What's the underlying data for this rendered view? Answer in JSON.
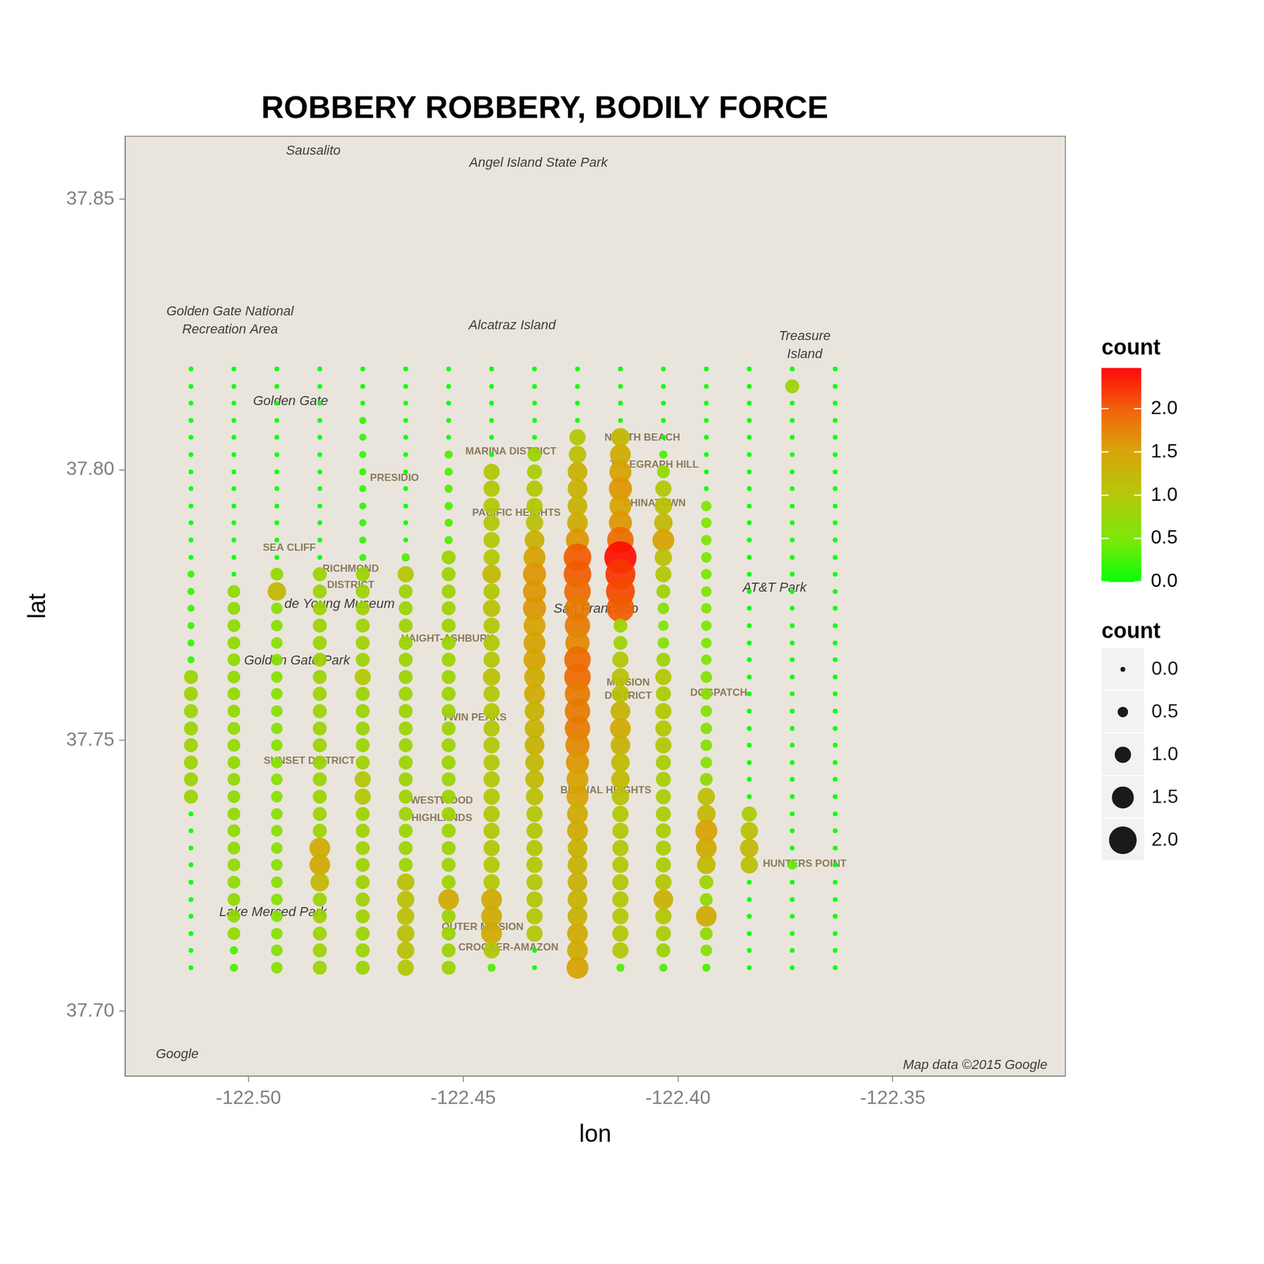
{
  "chart_data": {
    "type": "bubble",
    "title": "ROBBERY ROBBERY, BODILY FORCE",
    "x_label": "lon",
    "y_label": "lat",
    "xlim": [
      -122.5287,
      -122.3098
    ],
    "ylim": [
      37.688,
      37.8616
    ],
    "xticks": [
      {
        "value": -122.5,
        "label": "-122.50"
      },
      {
        "value": -122.45,
        "label": "-122.45"
      },
      {
        "value": -122.4,
        "label": "-122.40"
      },
      {
        "value": -122.35,
        "label": "-122.35"
      }
    ],
    "yticks": [
      {
        "value": 37.7,
        "label": "37.70"
      },
      37.75,
      {
        "value": 37.8,
        "label": "37.80"
      },
      37.85
    ],
    "grid": false,
    "legend": "right",
    "x": [
      -122.5134,
      -122.5034,
      -122.4934,
      -122.4834,
      -122.4734,
      -122.4634,
      -122.4534,
      -122.4434,
      -122.4334,
      -122.4234,
      -122.4134,
      -122.4034,
      -122.3934,
      -122.3834,
      -122.3734,
      -122.3634
    ],
    "y": [
      37.8186,
      37.8154,
      37.8123,
      37.8091,
      37.806,
      37.8028,
      37.7996,
      37.7965,
      37.7933,
      37.7902,
      37.787,
      37.7838,
      37.7807,
      37.7775,
      37.7744,
      37.7712,
      37.768,
      37.7649,
      37.7617,
      37.7586,
      37.7554,
      37.7522,
      37.7491,
      37.7459,
      37.7428,
      37.7396,
      37.7364,
      37.7333,
      37.7301,
      37.727,
      37.7238,
      37.7206,
      37.7175,
      37.7143,
      37.7112,
      37.708
    ],
    "values": [
      [
        0,
        0,
        0,
        0,
        0,
        0,
        0,
        0,
        0,
        0,
        0,
        0,
        0,
        0,
        0,
        0
      ],
      [
        0,
        0,
        0,
        0,
        0,
        0,
        0,
        0,
        0,
        0,
        0,
        0,
        0,
        0,
        0.8,
        0
      ],
      [
        0,
        0,
        0,
        0,
        0,
        0,
        0,
        0,
        0,
        0,
        0,
        0,
        0,
        0,
        0,
        0
      ],
      [
        0,
        0,
        0,
        0,
        0.2,
        0,
        0,
        0,
        0,
        0,
        0,
        0,
        0,
        0,
        0,
        0
      ],
      [
        0,
        0,
        0,
        0,
        0.2,
        0,
        0,
        0,
        0,
        1.0,
        1.2,
        0,
        0,
        0,
        0,
        0
      ],
      [
        0,
        0,
        0,
        0,
        0.2,
        0,
        0.3,
        0,
        0.8,
        1.1,
        1.4,
        0.3,
        0,
        0,
        0,
        0
      ],
      [
        0,
        0,
        0,
        0,
        0.2,
        0,
        0.3,
        1.0,
        0.9,
        1.3,
        1.5,
        0.7,
        0,
        0,
        0,
        0
      ],
      [
        0,
        0,
        0,
        0,
        0.2,
        0,
        0.3,
        1.0,
        1.0,
        1.3,
        1.6,
        1.0,
        0,
        0,
        0,
        0
      ],
      [
        0,
        0,
        0,
        0,
        0.2,
        0,
        0.3,
        1.0,
        1.0,
        1.3,
        1.5,
        1.1,
        0.5,
        0,
        0,
        0
      ],
      [
        0,
        0,
        0,
        0,
        0.2,
        0,
        0.3,
        1.0,
        1.1,
        1.4,
        1.6,
        1.2,
        0.5,
        0,
        0,
        0
      ],
      [
        0,
        0,
        0,
        0,
        0.2,
        0,
        0.3,
        1.0,
        1.3,
        1.6,
        1.9,
        1.5,
        0.5,
        0,
        0,
        0
      ],
      [
        0,
        0,
        0,
        0,
        0.2,
        0.3,
        0.8,
        1.0,
        1.5,
        2.0,
        2.4,
        1.1,
        0.5,
        0,
        0,
        0
      ],
      [
        0.2,
        0,
        0.7,
        0.8,
        0.8,
        1.0,
        0.8,
        1.2,
        1.6,
        2.0,
        2.2,
        1.0,
        0.5,
        0,
        0,
        0
      ],
      [
        0.2,
        0.7,
        1.2,
        0.8,
        0.8,
        0.8,
        0.8,
        1.0,
        1.6,
        1.9,
        2.1,
        0.8,
        0.5,
        0,
        0,
        0
      ],
      [
        0.2,
        0.7,
        0.6,
        0.8,
        0.8,
        0.8,
        0.8,
        1.1,
        1.6,
        1.8,
        2.0,
        0.6,
        0.5,
        0,
        0,
        0
      ],
      [
        0.2,
        0.7,
        0.6,
        0.8,
        0.8,
        0.8,
        0.8,
        1.0,
        1.5,
        1.8,
        0.8,
        0.5,
        0.5,
        0,
        0,
        0
      ],
      [
        0.2,
        0.7,
        0.6,
        0.8,
        0.8,
        0.8,
        0.8,
        1.0,
        1.5,
        1.7,
        0.8,
        0.6,
        0.5,
        0,
        0,
        0
      ],
      [
        0.2,
        0.7,
        0.6,
        0.8,
        0.8,
        0.8,
        0.8,
        1.0,
        1.5,
        1.9,
        1.0,
        0.8,
        0.5,
        0,
        0,
        0
      ],
      [
        0.8,
        0.7,
        0.6,
        0.8,
        1.0,
        0.8,
        0.8,
        1.1,
        1.4,
        1.9,
        1.1,
        1.0,
        0.6,
        0,
        0,
        0
      ],
      [
        0.8,
        0.7,
        0.6,
        0.8,
        0.8,
        0.8,
        0.8,
        1.0,
        1.4,
        1.8,
        1.1,
        0.9,
        0.6,
        0,
        0,
        0
      ],
      [
        0.8,
        0.7,
        0.6,
        0.8,
        0.8,
        0.8,
        0.8,
        1.0,
        1.3,
        1.8,
        1.3,
        1.0,
        0.6,
        0,
        0,
        0
      ],
      [
        0.8,
        0.7,
        0.6,
        0.8,
        0.8,
        0.8,
        0.8,
        1.0,
        1.3,
        1.8,
        1.4,
        1.0,
        0.6,
        0,
        0,
        0
      ],
      [
        0.8,
        0.7,
        0.6,
        0.8,
        0.8,
        0.8,
        0.8,
        1.0,
        1.3,
        1.7,
        1.3,
        1.0,
        0.6,
        0,
        0,
        0
      ],
      [
        0.8,
        0.7,
        0.6,
        0.8,
        0.8,
        0.8,
        0.8,
        1.0,
        1.2,
        1.6,
        1.2,
        0.9,
        0.6,
        0,
        0,
        0
      ],
      [
        0.8,
        0.7,
        0.6,
        0.8,
        1.0,
        0.8,
        0.8,
        1.0,
        1.2,
        1.5,
        1.2,
        0.9,
        0.7,
        0,
        0,
        0
      ],
      [
        0.8,
        0.7,
        0.6,
        0.8,
        1.0,
        0.8,
        0.8,
        1.0,
        1.1,
        1.5,
        1.1,
        0.9,
        1.1,
        0,
        0,
        0
      ],
      [
        0,
        0.7,
        0.6,
        0.8,
        0.8,
        0.8,
        0.8,
        1.0,
        1.0,
        1.4,
        1.0,
        0.9,
        1.2,
        0.9,
        0,
        0
      ],
      [
        0,
        0.7,
        0.6,
        0.8,
        0.8,
        0.8,
        0.8,
        1.0,
        1.0,
        1.4,
        1.0,
        0.9,
        1.5,
        1.1,
        0,
        0
      ],
      [
        0,
        0.7,
        0.6,
        1.4,
        0.8,
        0.8,
        0.8,
        1.0,
        1.0,
        1.3,
        1.0,
        0.9,
        1.4,
        1.2,
        0,
        0
      ],
      [
        0,
        0.7,
        0.6,
        1.4,
        0.8,
        0.8,
        0.8,
        1.0,
        1.0,
        1.3,
        1.0,
        0.9,
        1.2,
        1.1,
        0.4,
        0
      ],
      [
        0,
        0.7,
        0.6,
        1.2,
        0.8,
        1.1,
        0.8,
        1.0,
        1.0,
        1.3,
        1.0,
        1.0,
        0.8,
        0,
        0,
        0
      ],
      [
        0,
        0.7,
        0.6,
        0.8,
        0.8,
        1.1,
        1.4,
        1.4,
        1.0,
        1.3,
        1.0,
        1.3,
        0.7,
        0,
        0,
        0
      ],
      [
        0,
        0.7,
        0.6,
        0.8,
        0.8,
        1.1,
        0.8,
        1.4,
        1.0,
        1.3,
        1.0,
        1.0,
        1.4,
        0,
        0,
        0
      ],
      [
        0,
        0.7,
        0.6,
        0.8,
        0.8,
        1.1,
        0.8,
        1.4,
        1.0,
        1.4,
        1.0,
        0.9,
        0.7,
        0,
        0,
        0
      ],
      [
        0,
        0.3,
        0.6,
        0.8,
        0.8,
        1.1,
        0.8,
        1.0,
        0,
        1.4,
        1.0,
        0.8,
        0.6,
        0,
        0,
        0
      ],
      [
        0,
        0.3,
        0.6,
        0.8,
        0.8,
        1.0,
        0.8,
        0.3,
        0,
        1.5,
        0.3,
        0.3,
        0.3,
        0,
        0,
        0
      ]
    ],
    "color_scale": {
      "title": "count",
      "range": [
        0,
        2.47
      ],
      "ticks": [
        {
          "value": 0,
          "label": "0.0"
        },
        {
          "value": 0.5,
          "label": "0.5"
        },
        {
          "value": 1,
          "label": "1.0"
        },
        {
          "value": 1.5,
          "label": "1.5"
        },
        {
          "value": 2,
          "label": "2.0"
        }
      ]
    },
    "size_scale": {
      "title": "count",
      "ticks": [
        {
          "value": 0,
          "label": "0.0"
        },
        {
          "value": 0.5,
          "label": "0.5"
        },
        {
          "value": 1,
          "label": "1.0"
        },
        {
          "value": 1.5,
          "label": "1.5"
        },
        {
          "value": 2,
          "label": "2.0"
        }
      ]
    },
    "annotations": [
      {
        "text": "Sausalito",
        "x": -122.4849,
        "y": 37.8589
      },
      {
        "text": "Angel Island State Park",
        "x": -122.4325,
        "y": 37.8566
      },
      {
        "text": "Golden Gate National",
        "x": -122.5043,
        "y": 37.8292
      },
      {
        "text": "Recreation Area",
        "x": -122.5043,
        "y": 37.8259
      },
      {
        "text": "Alcatraz Island",
        "x": -122.4386,
        "y": 37.8266
      },
      {
        "text": "Treasure",
        "x": -122.3705,
        "y": 37.8246
      },
      {
        "text": "Island",
        "x": -122.3705,
        "y": 37.8213
      },
      {
        "text": "Golden Gate",
        "x": -122.4902,
        "y": 37.8126
      },
      {
        "text": "PRESIDIO",
        "x": -122.466,
        "y": 37.7985
      },
      {
        "text": "MARINA DISTRICT",
        "x": -122.4389,
        "y": 37.8033
      },
      {
        "text": "NORTH BEACH",
        "x": -122.4083,
        "y": 37.8059
      },
      {
        "text": "TELEGRAPH HILL",
        "x": -122.4055,
        "y": 37.8009
      },
      {
        "text": "PACIFIC HEIGHTS",
        "x": -122.4376,
        "y": 37.792
      },
      {
        "text": "CHINATOWN",
        "x": -122.4055,
        "y": 37.7938
      },
      {
        "text": "SEA CLIFF",
        "x": -122.4905,
        "y": 37.7856
      },
      {
        "text": "RICHMOND",
        "x": -122.4762,
        "y": 37.7817
      },
      {
        "text": "DISTRICT",
        "x": -122.4762,
        "y": 37.7787
      },
      {
        "text": "San Francisco",
        "x": -122.4191,
        "y": 37.7743
      },
      {
        "text": "AT&T Park",
        "x": -122.3775,
        "y": 37.7782
      },
      {
        "text": "de Young Museum",
        "x": -122.4788,
        "y": 37.7751
      },
      {
        "text": "Golden Gate Park",
        "x": -122.4887,
        "y": 37.7647
      },
      {
        "text": "HAIGHT-ASHBURY",
        "x": -122.4537,
        "y": 37.7688
      },
      {
        "text": "MISSION",
        "x": -122.4116,
        "y": 37.7606
      },
      {
        "text": "DISTRICT",
        "x": -122.4116,
        "y": 37.7582
      },
      {
        "text": "DOGPATCH",
        "x": -122.3905,
        "y": 37.7587
      },
      {
        "text": "SUNSET DISTRICT",
        "x": -122.4858,
        "y": 37.7462
      },
      {
        "text": "TWIN PEAKS",
        "x": -122.4474,
        "y": 37.7542
      },
      {
        "text": "BERNAL HEIGHTS",
        "x": -122.4168,
        "y": 37.7407
      },
      {
        "text": "WESTWOOD",
        "x": -122.455,
        "y": 37.7389
      },
      {
        "text": "HIGHLANDS",
        "x": -122.455,
        "y": 37.7356
      },
      {
        "text": "HUNTERS POINT",
        "x": -122.3705,
        "y": 37.7272
      },
      {
        "text": "Lake Merced Park",
        "x": -122.4943,
        "y": 37.7182
      },
      {
        "text": "OUTER MISSION",
        "x": -122.4455,
        "y": 37.7155
      },
      {
        "text": "CROCKER-AMAZON",
        "x": -122.4395,
        "y": 37.7117
      },
      {
        "text": "Map data ©2015 Google",
        "x": -122.3308,
        "y": 37.69
      },
      {
        "text": "Google",
        "x": -122.5166,
        "y": 37.692
      }
    ]
  }
}
